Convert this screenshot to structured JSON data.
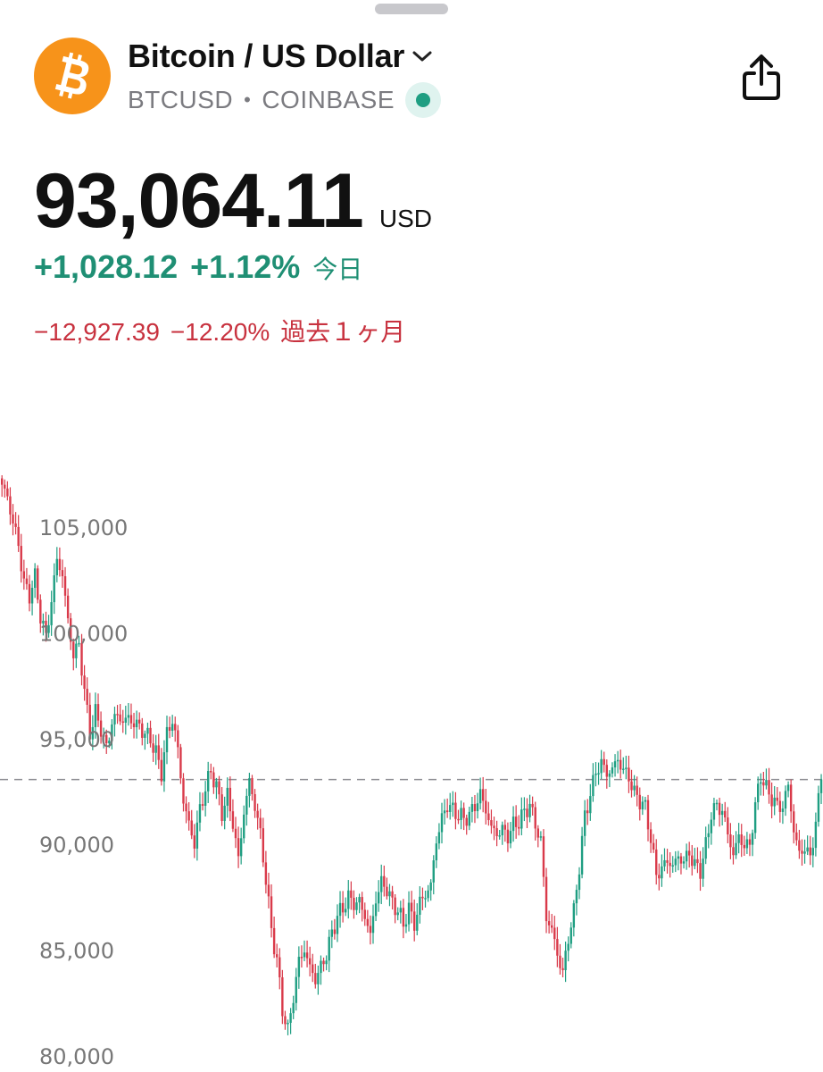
{
  "header": {
    "title": "Bitcoin / US Dollar",
    "symbol": "BTCUSD",
    "separator": "•",
    "exchange": "COINBASE",
    "logo_icon": "bitcoin-logo-icon",
    "dropdown_icon": "chevron-down-icon",
    "share_icon": "share-icon",
    "live_status": "market-open-dot",
    "brand_color": "#f7931a"
  },
  "quote": {
    "price": "93,064.11",
    "currency": "USD",
    "day_change": "+1,028.12",
    "day_change_percent": "+1.12%",
    "day_label": "今日",
    "month_change": "−12,927.39",
    "month_change_percent": "−12.20%",
    "month_label": "過去１ヶ月",
    "up_color": "#1f9e82",
    "down_color": "#d93a4a"
  },
  "chart_data": {
    "type": "candlestick",
    "y_ticks": [
      "105,000",
      "100,000",
      "95,000",
      "90,000",
      "85,000",
      "80,000"
    ],
    "y_tick_values": [
      105000,
      100000,
      95000,
      90000,
      85000,
      80000
    ],
    "ylim": [
      79500,
      108000
    ],
    "last_price_line": 93064.11,
    "close_path": [
      [
        0,
        107000
      ],
      [
        2,
        106400
      ],
      [
        4,
        105200
      ],
      [
        6,
        104200
      ],
      [
        8,
        102300
      ],
      [
        10,
        101800
      ],
      [
        12,
        102600
      ],
      [
        14,
        100800
      ],
      [
        16,
        99800
      ],
      [
        18,
        101500
      ],
      [
        20,
        103500
      ],
      [
        22,
        102700
      ],
      [
        24,
        100600
      ],
      [
        26,
        98900
      ],
      [
        28,
        99500
      ],
      [
        30,
        97200
      ],
      [
        32,
        95300
      ],
      [
        34,
        96200
      ],
      [
        36,
        95500
      ],
      [
        38,
        94500
      ],
      [
        40,
        95800
      ],
      [
        42,
        96100
      ],
      [
        44,
        95800
      ],
      [
        46,
        96000
      ],
      [
        48,
        95700
      ],
      [
        50,
        95600
      ],
      [
        52,
        95200
      ],
      [
        54,
        95000
      ],
      [
        56,
        94300
      ],
      [
        58,
        93400
      ],
      [
        60,
        95200
      ],
      [
        62,
        95900
      ],
      [
        64,
        94500
      ],
      [
        66,
        92000
      ],
      [
        68,
        91000
      ],
      [
        70,
        90000
      ],
      [
        72,
        91700
      ],
      [
        74,
        92600
      ],
      [
        76,
        93500
      ],
      [
        78,
        92700
      ],
      [
        80,
        91500
      ],
      [
        82,
        92300
      ],
      [
        84,
        91000
      ],
      [
        86,
        89300
      ],
      [
        88,
        91500
      ],
      [
        90,
        93000
      ],
      [
        92,
        91800
      ],
      [
        94,
        90500
      ],
      [
        96,
        88300
      ],
      [
        98,
        86000
      ],
      [
        100,
        84500
      ],
      [
        102,
        82200
      ],
      [
        104,
        81200
      ],
      [
        106,
        82800
      ],
      [
        108,
        84500
      ],
      [
        110,
        85000
      ],
      [
        112,
        84200
      ],
      [
        114,
        83600
      ],
      [
        116,
        84200
      ],
      [
        118,
        84800
      ],
      [
        120,
        85800
      ],
      [
        122,
        86600
      ],
      [
        124,
        87000
      ],
      [
        126,
        87500
      ],
      [
        128,
        87200
      ],
      [
        130,
        87300
      ],
      [
        132,
        86600
      ],
      [
        134,
        85700
      ],
      [
        136,
        87400
      ],
      [
        138,
        88200
      ],
      [
        140,
        87900
      ],
      [
        142,
        87200
      ],
      [
        144,
        86900
      ],
      [
        146,
        86200
      ],
      [
        148,
        87000
      ],
      [
        150,
        86200
      ],
      [
        152,
        87300
      ],
      [
        154,
        87600
      ],
      [
        156,
        88100
      ],
      [
        158,
        90200
      ],
      [
        160,
        91200
      ],
      [
        162,
        91900
      ],
      [
        164,
        91600
      ],
      [
        166,
        91400
      ],
      [
        168,
        91200
      ],
      [
        170,
        91400
      ],
      [
        172,
        91800
      ],
      [
        174,
        92400
      ],
      [
        176,
        91600
      ],
      [
        178,
        90800
      ],
      [
        180,
        90500
      ],
      [
        182,
        90700
      ],
      [
        184,
        90400
      ],
      [
        186,
        90900
      ],
      [
        188,
        91100
      ],
      [
        190,
        91500
      ],
      [
        192,
        91900
      ],
      [
        194,
        90900
      ],
      [
        196,
        90200
      ],
      [
        198,
        86500
      ],
      [
        200,
        86000
      ],
      [
        202,
        84800
      ],
      [
        204,
        83900
      ],
      [
        206,
        85600
      ],
      [
        208,
        86800
      ],
      [
        210,
        89000
      ],
      [
        212,
        91300
      ],
      [
        214,
        92400
      ],
      [
        216,
        93400
      ],
      [
        218,
        93900
      ],
      [
        220,
        93300
      ],
      [
        222,
        93600
      ],
      [
        224,
        94000
      ],
      [
        226,
        93500
      ],
      [
        228,
        93200
      ],
      [
        230,
        92400
      ],
      [
        232,
        92100
      ],
      [
        234,
        91700
      ],
      [
        236,
        90300
      ],
      [
        238,
        88500
      ],
      [
        240,
        88900
      ],
      [
        242,
        89200
      ],
      [
        244,
        89000
      ],
      [
        246,
        89400
      ],
      [
        248,
        89200
      ],
      [
        250,
        89600
      ],
      [
        252,
        89000
      ],
      [
        254,
        88800
      ],
      [
        256,
        89900
      ],
      [
        258,
        91500
      ],
      [
        260,
        91800
      ],
      [
        262,
        91600
      ],
      [
        264,
        90500
      ],
      [
        266,
        89500
      ],
      [
        268,
        90400
      ],
      [
        270,
        89900
      ],
      [
        272,
        90000
      ],
      [
        274,
        91800
      ],
      [
        276,
        93300
      ],
      [
        278,
        92600
      ],
      [
        280,
        92200
      ],
      [
        282,
        91800
      ],
      [
        284,
        91800
      ],
      [
        286,
        92800
      ],
      [
        288,
        90600
      ],
      [
        290,
        89600
      ],
      [
        292,
        89800
      ],
      [
        294,
        89400
      ],
      [
        296,
        91000
      ],
      [
        298,
        93064
      ]
    ]
  }
}
